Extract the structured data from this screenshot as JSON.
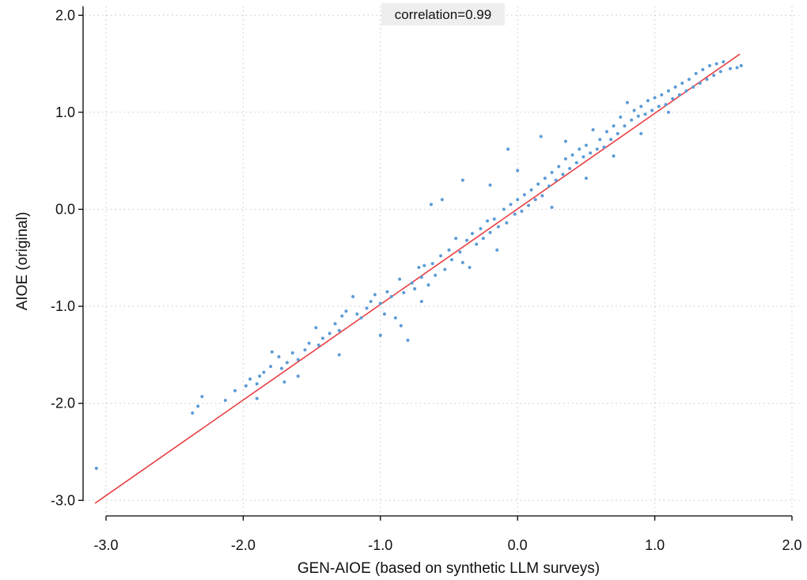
{
  "chart_data": {
    "type": "scatter",
    "title": "",
    "xlabel": "GEN-AIOE (based on synthetic LLM surveys)",
    "ylabel": "AIOE (original)",
    "xlim": [
      -3.15,
      2.0
    ],
    "ylim": [
      -3.0,
      2.0
    ],
    "x_ticks": [
      -3.0,
      -2.0,
      -1.0,
      0.0,
      1.0,
      2.0
    ],
    "y_ticks": [
      -3.0,
      -2.0,
      -1.0,
      0.0,
      1.0,
      2.0
    ],
    "x_tick_labels": [
      "-3.0",
      "-2.0",
      "-1.0",
      "0.0",
      "1.0",
      "2.0"
    ],
    "y_tick_labels": [
      "-3.0",
      "-2.0",
      "-1.0",
      "0.0",
      "1.0",
      "2.0"
    ],
    "grid": true,
    "annotation": "correlation=0.99",
    "colors": {
      "points": "#5b9bd5",
      "fit_line": "#e8363a",
      "grid": "#c8c8c8",
      "annotation_bg": "#eeeeee"
    },
    "fit_line": {
      "x": [
        -3.08,
        1.62
      ],
      "y": [
        -3.03,
        1.6
      ]
    },
    "series": [
      {
        "points": [
          [
            -3.07,
            -2.67
          ],
          [
            -2.37,
            -2.1
          ],
          [
            -2.33,
            -2.03
          ],
          [
            -2.3,
            -1.93
          ],
          [
            -2.13,
            -1.97
          ],
          [
            -2.06,
            -1.87
          ],
          [
            -1.98,
            -1.82
          ],
          [
            -1.95,
            -1.75
          ],
          [
            -1.9,
            -1.8
          ],
          [
            -1.88,
            -1.72
          ],
          [
            -1.85,
            -1.68
          ],
          [
            -1.8,
            -1.62
          ],
          [
            -1.79,
            -1.47
          ],
          [
            -1.74,
            -1.52
          ],
          [
            -1.72,
            -1.64
          ],
          [
            -1.7,
            -1.78
          ],
          [
            -1.68,
            -1.58
          ],
          [
            -1.64,
            -1.48
          ],
          [
            -1.6,
            -1.55
          ],
          [
            -1.55,
            -1.45
          ],
          [
            -1.52,
            -1.38
          ],
          [
            -1.47,
            -1.22
          ],
          [
            -1.45,
            -1.4
          ],
          [
            -1.42,
            -1.33
          ],
          [
            -1.37,
            -1.28
          ],
          [
            -1.33,
            -1.18
          ],
          [
            -1.3,
            -1.25
          ],
          [
            -1.28,
            -1.1
          ],
          [
            -1.25,
            -1.05
          ],
          [
            -1.2,
            -0.9
          ],
          [
            -1.17,
            -1.08
          ],
          [
            -1.14,
            -1.12
          ],
          [
            -1.1,
            -1.02
          ],
          [
            -1.07,
            -0.95
          ],
          [
            -1.04,
            -0.88
          ],
          [
            -1.0,
            -0.97
          ],
          [
            -0.97,
            -1.08
          ],
          [
            -0.95,
            -0.85
          ],
          [
            -0.92,
            -0.9
          ],
          [
            -0.89,
            -1.12
          ],
          [
            -0.86,
            -0.72
          ],
          [
            -0.83,
            -0.86
          ],
          [
            -0.8,
            -1.35
          ],
          [
            -0.77,
            -0.76
          ],
          [
            -0.75,
            -0.82
          ],
          [
            -0.72,
            -0.6
          ],
          [
            -0.7,
            -0.7
          ],
          [
            -0.68,
            -0.58
          ],
          [
            -0.65,
            -0.78
          ],
          [
            -0.62,
            -0.56
          ],
          [
            -0.6,
            -0.68
          ],
          [
            -0.56,
            -0.48
          ],
          [
            -0.53,
            -0.62
          ],
          [
            -0.5,
            -0.42
          ],
          [
            -0.48,
            -0.52
          ],
          [
            -0.45,
            -0.3
          ],
          [
            -0.42,
            -0.44
          ],
          [
            -0.4,
            -0.55
          ],
          [
            -0.37,
            -0.32
          ],
          [
            -0.33,
            -0.25
          ],
          [
            -0.3,
            -0.36
          ],
          [
            -0.27,
            -0.2
          ],
          [
            -0.25,
            -0.3
          ],
          [
            -0.22,
            -0.12
          ],
          [
            -0.2,
            -0.24
          ],
          [
            -0.17,
            -0.1
          ],
          [
            -0.14,
            -0.18
          ],
          [
            -0.1,
            0.0
          ],
          [
            -0.08,
            -0.14
          ],
          [
            -0.07,
            0.62
          ],
          [
            -0.05,
            0.05
          ],
          [
            -0.02,
            -0.05
          ],
          [
            0.0,
            0.1
          ],
          [
            0.03,
            -0.02
          ],
          [
            0.05,
            0.15
          ],
          [
            0.08,
            0.04
          ],
          [
            0.1,
            0.2
          ],
          [
            0.13,
            0.1
          ],
          [
            0.15,
            0.26
          ],
          [
            0.18,
            0.14
          ],
          [
            0.2,
            0.32
          ],
          [
            0.23,
            0.24
          ],
          [
            0.25,
            0.38
          ],
          [
            0.28,
            0.3
          ],
          [
            0.3,
            0.44
          ],
          [
            0.33,
            0.36
          ],
          [
            0.35,
            0.52
          ],
          [
            0.38,
            0.42
          ],
          [
            0.4,
            0.56
          ],
          [
            0.43,
            0.48
          ],
          [
            0.45,
            0.62
          ],
          [
            0.48,
            0.54
          ],
          [
            0.5,
            0.66
          ],
          [
            0.53,
            0.58
          ],
          [
            0.55,
            0.82
          ],
          [
            0.58,
            0.62
          ],
          [
            0.6,
            0.72
          ],
          [
            0.63,
            0.64
          ],
          [
            0.65,
            0.8
          ],
          [
            0.68,
            0.72
          ],
          [
            0.7,
            0.86
          ],
          [
            0.73,
            0.78
          ],
          [
            0.75,
            0.95
          ],
          [
            0.78,
            0.86
          ],
          [
            0.8,
            1.1
          ],
          [
            0.83,
            0.92
          ],
          [
            0.85,
            1.02
          ],
          [
            0.88,
            0.96
          ],
          [
            0.9,
            1.06
          ],
          [
            0.93,
            0.98
          ],
          [
            0.95,
            1.12
          ],
          [
            0.98,
            1.02
          ],
          [
            1.0,
            1.15
          ],
          [
            1.03,
            1.06
          ],
          [
            1.05,
            1.18
          ],
          [
            1.08,
            1.08
          ],
          [
            1.1,
            1.22
          ],
          [
            1.13,
            1.14
          ],
          [
            1.15,
            1.26
          ],
          [
            1.18,
            1.18
          ],
          [
            1.2,
            1.3
          ],
          [
            1.23,
            1.22
          ],
          [
            1.25,
            1.34
          ],
          [
            1.28,
            1.26
          ],
          [
            1.3,
            1.4
          ],
          [
            1.33,
            1.3
          ],
          [
            1.35,
            1.44
          ],
          [
            1.38,
            1.34
          ],
          [
            1.4,
            1.48
          ],
          [
            1.43,
            1.38
          ],
          [
            1.45,
            1.5
          ],
          [
            1.48,
            1.42
          ],
          [
            1.5,
            1.52
          ],
          [
            1.55,
            1.45
          ],
          [
            1.6,
            1.46
          ],
          [
            1.63,
            1.48
          ],
          [
            -0.4,
            0.3
          ],
          [
            -0.63,
            0.05
          ],
          [
            0.17,
            0.75
          ],
          [
            -0.55,
            0.1
          ],
          [
            -0.2,
            0.25
          ],
          [
            0.0,
            0.4
          ],
          [
            0.35,
            0.7
          ],
          [
            -1.3,
            -1.5
          ],
          [
            -1.0,
            -1.3
          ],
          [
            -0.85,
            -1.2
          ],
          [
            -0.7,
            -0.95
          ],
          [
            0.5,
            0.32
          ],
          [
            0.7,
            0.55
          ],
          [
            0.9,
            0.78
          ],
          [
            1.1,
            1.0
          ],
          [
            -0.15,
            -0.42
          ],
          [
            -0.35,
            -0.6
          ],
          [
            0.25,
            0.02
          ],
          [
            -1.6,
            -1.72
          ],
          [
            -1.9,
            -1.95
          ]
        ]
      }
    ]
  }
}
